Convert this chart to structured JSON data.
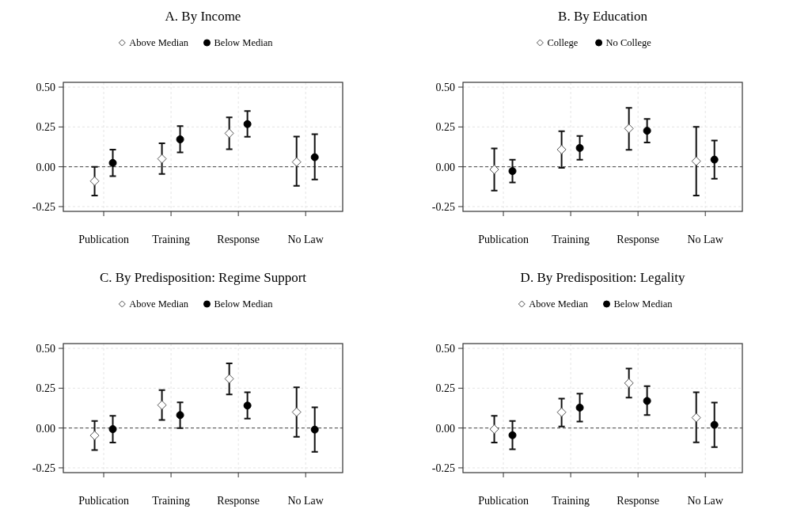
{
  "chart_data": [
    {
      "type": "scatter",
      "title": "A. By Income",
      "categories": [
        "Publication",
        "Training",
        "Response",
        "No Law"
      ],
      "ylim": [
        -0.28,
        0.53
      ],
      "yticks": [
        {
          "value": 0.5,
          "label": "0.50"
        },
        {
          "value": 0.25,
          "label": "0.25"
        },
        {
          "value": 0,
          "label": "0.00"
        },
        {
          "value": -0.25,
          "label": "-0.25"
        }
      ],
      "grid": true,
      "legend": "top",
      "ref_lines": [
        {
          "axis": "y",
          "value": 0,
          "line_style": "dashed"
        }
      ],
      "series": [
        {
          "name": "Above Median",
          "color": "#555555",
          "marker": "diamond",
          "values": [
            -0.09,
            0.05,
            0.21,
            0.03
          ],
          "errors": [
            [
              -0.18,
              0.0
            ],
            [
              -0.045,
              0.147
            ],
            [
              0.11,
              0.31
            ],
            [
              -0.12,
              0.19
            ]
          ]
        },
        {
          "name": "Below Median",
          "color": "#000000",
          "marker": "circle",
          "values": [
            0.024,
            0.172,
            0.268,
            0.06
          ],
          "errors": [
            [
              -0.059,
              0.108
            ],
            [
              0.09,
              0.255
            ],
            [
              0.188,
              0.35
            ],
            [
              -0.08,
              0.205
            ]
          ]
        }
      ]
    },
    {
      "type": "scatter",
      "title": "B. By Education",
      "categories": [
        "Publication",
        "Training",
        "Response",
        "No Law"
      ],
      "ylim": [
        -0.28,
        0.53
      ],
      "yticks": [
        {
          "value": 0.5,
          "label": "0.50"
        },
        {
          "value": 0.25,
          "label": "0.25"
        },
        {
          "value": 0,
          "label": "0.00"
        },
        {
          "value": -0.25,
          "label": "-0.25"
        }
      ],
      "grid": true,
      "legend": "top",
      "ref_lines": [
        {
          "axis": "y",
          "value": 0,
          "line_style": "dashed"
        }
      ],
      "series": [
        {
          "name": "College",
          "color": "#555555",
          "marker": "diamond",
          "values": [
            -0.017,
            0.108,
            0.24,
            0.035
          ],
          "errors": [
            [
              -0.15,
              0.115
            ],
            [
              -0.007,
              0.223
            ],
            [
              0.106,
              0.37
            ],
            [
              -0.18,
              0.25
            ]
          ]
        },
        {
          "name": "No College",
          "color": "#000000",
          "marker": "circle",
          "values": [
            -0.027,
            0.118,
            0.226,
            0.045
          ],
          "errors": [
            [
              -0.098,
              0.044
            ],
            [
              0.044,
              0.193
            ],
            [
              0.152,
              0.3
            ],
            [
              -0.075,
              0.165
            ]
          ]
        }
      ]
    },
    {
      "type": "scatter",
      "title": "C. By Predisposition: Regime Support",
      "categories": [
        "Publication",
        "Training",
        "Response",
        "No Law"
      ],
      "ylim": [
        -0.28,
        0.53
      ],
      "yticks": [
        {
          "value": 0.5,
          "label": "0.50"
        },
        {
          "value": 0.25,
          "label": "0.25"
        },
        {
          "value": 0,
          "label": "0.00"
        },
        {
          "value": -0.25,
          "label": "-0.25"
        }
      ],
      "grid": true,
      "legend": "top",
      "ref_lines": [
        {
          "axis": "y",
          "value": 0,
          "line_style": "dashed"
        }
      ],
      "series": [
        {
          "name": "Above Median",
          "color": "#555555",
          "marker": "diamond",
          "values": [
            -0.047,
            0.144,
            0.309,
            0.1
          ],
          "errors": [
            [
              -0.138,
              0.044
            ],
            [
              0.05,
              0.238
            ],
            [
              0.211,
              0.406
            ],
            [
              -0.055,
              0.255
            ]
          ]
        },
        {
          "name": "Below Median",
          "color": "#000000",
          "marker": "circle",
          "values": [
            -0.007,
            0.081,
            0.141,
            -0.01
          ],
          "errors": [
            [
              -0.091,
              0.077
            ],
            [
              0.0,
              0.161
            ],
            [
              0.059,
              0.225
            ],
            [
              -0.15,
              0.13
            ]
          ]
        }
      ]
    },
    {
      "type": "scatter",
      "title": "D. By Predisposition: Legality",
      "categories": [
        "Publication",
        "Training",
        "Response",
        "No Law"
      ],
      "ylim": [
        -0.28,
        0.53
      ],
      "yticks": [
        {
          "value": 0.5,
          "label": "0.50"
        },
        {
          "value": 0.25,
          "label": "0.25"
        },
        {
          "value": 0,
          "label": "0.00"
        },
        {
          "value": -0.25,
          "label": "-0.25"
        }
      ],
      "grid": true,
      "legend": "top",
      "ref_lines": [
        {
          "axis": "y",
          "value": 0,
          "line_style": "dashed"
        }
      ],
      "series": [
        {
          "name": "Above Median",
          "color": "#555555",
          "marker": "diamond",
          "values": [
            -0.007,
            0.099,
            0.282,
            0.065
          ],
          "errors": [
            [
              -0.091,
              0.077
            ],
            [
              0.01,
              0.185
            ],
            [
              0.191,
              0.374
            ],
            [
              -0.09,
              0.225
            ]
          ]
        },
        {
          "name": "Below Median",
          "color": "#000000",
          "marker": "circle",
          "values": [
            -0.045,
            0.128,
            0.17,
            0.02
          ],
          "errors": [
            [
              -0.134,
              0.044
            ],
            [
              0.04,
              0.216
            ],
            [
              0.082,
              0.263
            ],
            [
              -0.12,
              0.16
            ]
          ]
        }
      ]
    }
  ]
}
